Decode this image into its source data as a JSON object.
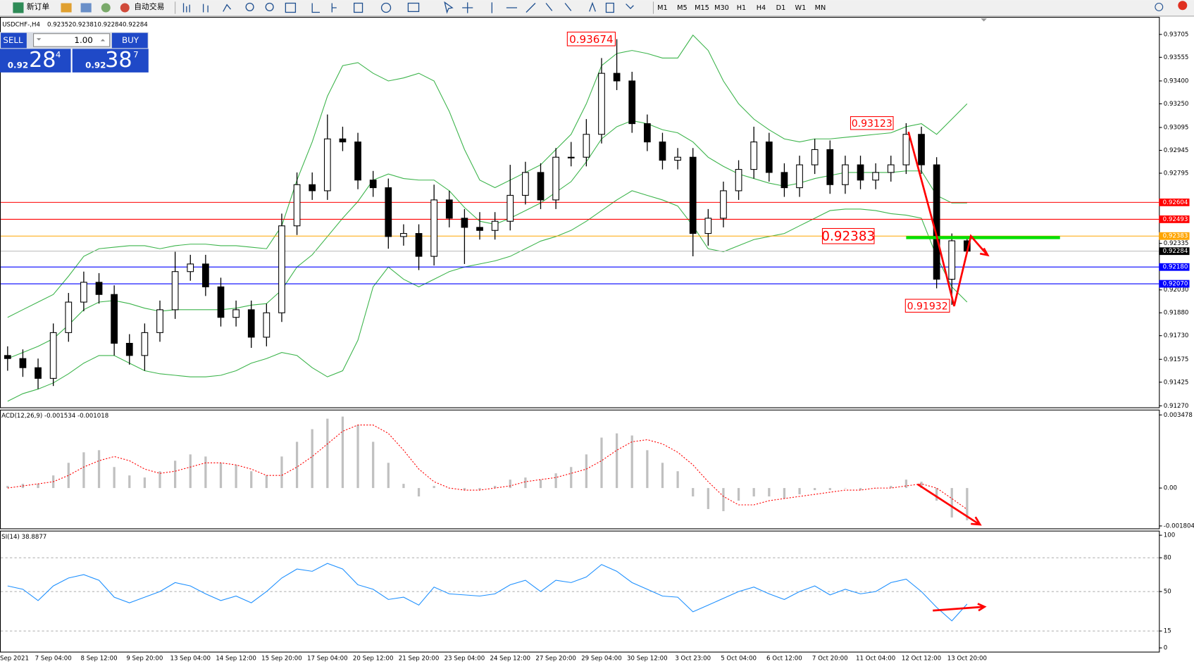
{
  "toolbar": {
    "new_order": "新订单",
    "auto_trading": "自动交易",
    "timeframes": [
      "M1",
      "M5",
      "M15",
      "M30",
      "H1",
      "H4",
      "D1",
      "W1",
      "MN"
    ]
  },
  "trade_panel": {
    "sell": "SELL",
    "buy": "BUY",
    "lots": "1.00",
    "sell_price": {
      "prefix": "0.92",
      "big": "28",
      "small": "4"
    },
    "buy_price": {
      "prefix": "0.92",
      "big": "38",
      "small": "7"
    }
  },
  "chart_data": [
    {
      "type": "candlestick",
      "symbol": "USDCHF-,H4",
      "categories": [
        "Sep 2021",
        null,
        null,
        "7 Sep 04:00",
        null,
        null,
        "8 Sep 12:00",
        null,
        null,
        "9 Sep 20:00",
        null,
        null,
        "13 Sep 04:00",
        null,
        null,
        "14 Sep 12:00",
        null,
        null,
        "15 Sep 20:00",
        null,
        null,
        "17 Sep 04:00",
        null,
        null,
        "20 Sep 12:00",
        null,
        null,
        "21 Sep 20:00",
        null,
        null,
        "23 Sep 04:00",
        null,
        null,
        "24 Sep 12:00",
        null,
        null,
        "27 Sep 20:00",
        null,
        null,
        "29 Sep 04:00",
        null,
        null,
        "30 Sep 12:00",
        null,
        null,
        "3 Oct 23:00",
        null,
        null,
        "5 Oct 04:00",
        null,
        null,
        "6 Oct 12:00",
        null,
        null,
        "7 Oct 20:00",
        null,
        null,
        "11 Oct 04:00",
        null,
        null,
        "12 Oct 12:00",
        null,
        null,
        "13 Oct 20:00"
      ],
      "open": [
        0.916,
        0.9158,
        0.9152,
        0.9145,
        0.9175,
        0.9195,
        0.9208,
        0.92,
        0.9168,
        0.916,
        0.9175,
        0.919,
        0.9215,
        0.922,
        0.9205,
        0.9185,
        0.919,
        0.9172,
        0.9188,
        0.9245,
        0.9272,
        0.9268,
        0.9302,
        0.93,
        0.9275,
        0.927,
        0.9238,
        0.924,
        0.9225,
        0.9262,
        0.925,
        0.9244,
        0.9242,
        0.9248,
        0.9265,
        0.928,
        0.9262,
        0.929,
        0.929,
        0.9305,
        0.9345,
        0.934,
        0.9312,
        0.93,
        0.9288,
        0.929,
        0.924,
        0.925,
        0.9268,
        0.9282,
        0.93,
        0.928,
        0.927,
        0.9285,
        0.9295,
        0.9272,
        0.9285,
        0.9275,
        0.928,
        0.9285,
        0.9305,
        0.9285,
        0.921,
        0.92352
      ],
      "high": [
        0.9166,
        0.9164,
        0.9158,
        0.9181,
        0.9201,
        0.9215,
        0.9214,
        0.9206,
        0.9174,
        0.9181,
        0.9196,
        0.9228,
        0.9226,
        0.9226,
        0.9211,
        0.9196,
        0.9196,
        0.9194,
        0.9253,
        0.928,
        0.928,
        0.9318,
        0.931,
        0.9306,
        0.9281,
        0.9276,
        0.9246,
        0.9246,
        0.9272,
        0.9268,
        0.9256,
        0.9254,
        0.9254,
        0.9285,
        0.9287,
        0.9286,
        0.9296,
        0.93,
        0.9315,
        0.9355,
        0.93674,
        0.9346,
        0.9318,
        0.9306,
        0.9296,
        0.9296,
        0.9256,
        0.9274,
        0.9288,
        0.931,
        0.9306,
        0.9286,
        0.9291,
        0.9302,
        0.9301,
        0.9291,
        0.9291,
        0.9286,
        0.9291,
        0.93123,
        0.931,
        0.929,
        0.924,
        0.92381
      ],
      "low": [
        0.915,
        0.9146,
        0.9138,
        0.914,
        0.9169,
        0.9189,
        0.9194,
        0.916,
        0.9154,
        0.915,
        0.9169,
        0.9184,
        0.9209,
        0.9199,
        0.9179,
        0.9179,
        0.9165,
        0.9166,
        0.9182,
        0.9239,
        0.9262,
        0.9262,
        0.9294,
        0.9269,
        0.9264,
        0.923,
        0.9232,
        0.9216,
        0.9219,
        0.9244,
        0.922,
        0.9236,
        0.9236,
        0.9242,
        0.9259,
        0.9256,
        0.9256,
        0.9284,
        0.9284,
        0.9299,
        0.9334,
        0.9306,
        0.9294,
        0.9282,
        0.9282,
        0.9225,
        0.9232,
        0.9244,
        0.9262,
        0.9276,
        0.9274,
        0.9264,
        0.9264,
        0.9279,
        0.9266,
        0.9266,
        0.9269,
        0.9269,
        0.9274,
        0.9279,
        0.9279,
        0.9204,
        0.91932,
        0.92284
      ],
      "close": [
        0.9158,
        0.9152,
        0.9145,
        0.9175,
        0.9195,
        0.9208,
        0.92,
        0.9168,
        0.916,
        0.9175,
        0.919,
        0.9215,
        0.922,
        0.9205,
        0.9185,
        0.919,
        0.9172,
        0.9188,
        0.9245,
        0.9272,
        0.9268,
        0.9302,
        0.93,
        0.9275,
        0.927,
        0.9238,
        0.924,
        0.9225,
        0.9262,
        0.925,
        0.9244,
        0.9242,
        0.9248,
        0.9265,
        0.928,
        0.9262,
        0.929,
        0.929,
        0.9305,
        0.9345,
        0.934,
        0.9312,
        0.93,
        0.9288,
        0.929,
        0.924,
        0.925,
        0.9268,
        0.9282,
        0.93,
        0.928,
        0.927,
        0.9285,
        0.9295,
        0.9272,
        0.9285,
        0.9275,
        0.928,
        0.9285,
        0.9305,
        0.9285,
        0.921,
        0.92352,
        0.92284
      ],
      "upper_band": [
        0.9185,
        0.919,
        0.9195,
        0.92,
        0.9212,
        0.9225,
        0.923,
        0.9231,
        0.9232,
        0.9232,
        0.923,
        0.9232,
        0.9233,
        0.9233,
        0.9232,
        0.9232,
        0.9231,
        0.923,
        0.9245,
        0.9275,
        0.93,
        0.933,
        0.935,
        0.9352,
        0.9345,
        0.934,
        0.9342,
        0.9345,
        0.934,
        0.932,
        0.9295,
        0.9275,
        0.927,
        0.9275,
        0.928,
        0.9285,
        0.9295,
        0.9305,
        0.9325,
        0.935,
        0.9358,
        0.936,
        0.9358,
        0.9355,
        0.9355,
        0.937,
        0.936,
        0.934,
        0.9325,
        0.9315,
        0.9308,
        0.9302,
        0.93,
        0.9302,
        0.9302,
        0.9303,
        0.9304,
        0.9305,
        0.9306,
        0.931,
        0.9312,
        0.9305,
        0.9315,
        0.9325
      ],
      "middle_band": [
        0.9158,
        0.9162,
        0.9166,
        0.9171,
        0.918,
        0.919,
        0.9195,
        0.9196,
        0.9194,
        0.9191,
        0.9189,
        0.919,
        0.919,
        0.919,
        0.919,
        0.9191,
        0.9193,
        0.9194,
        0.9203,
        0.9218,
        0.9226,
        0.9238,
        0.925,
        0.9261,
        0.9275,
        0.9279,
        0.9276,
        0.9275,
        0.9275,
        0.9268,
        0.9257,
        0.9248,
        0.9246,
        0.925,
        0.9255,
        0.926,
        0.9267,
        0.9274,
        0.9287,
        0.9302,
        0.931,
        0.9314,
        0.9312,
        0.9308,
        0.9306,
        0.93,
        0.929,
        0.9284,
        0.9279,
        0.9276,
        0.9273,
        0.9271,
        0.9273,
        0.9276,
        0.9278,
        0.928,
        0.928,
        0.928,
        0.928,
        0.9281,
        0.9281,
        0.9265,
        0.926,
        0.926
      ],
      "lower_band": [
        0.913,
        0.9135,
        0.9138,
        0.9142,
        0.9148,
        0.9155,
        0.916,
        0.916,
        0.9155,
        0.915,
        0.9148,
        0.9147,
        0.9146,
        0.9146,
        0.9147,
        0.915,
        0.9155,
        0.9158,
        0.9162,
        0.916,
        0.9152,
        0.9146,
        0.915,
        0.917,
        0.9205,
        0.9218,
        0.921,
        0.9205,
        0.921,
        0.9215,
        0.9218,
        0.922,
        0.9222,
        0.9225,
        0.923,
        0.9235,
        0.9238,
        0.9242,
        0.9248,
        0.9255,
        0.9262,
        0.9268,
        0.9265,
        0.9262,
        0.9258,
        0.9245,
        0.923,
        0.9228,
        0.9232,
        0.9236,
        0.9238,
        0.924,
        0.9245,
        0.925,
        0.9255,
        0.9256,
        0.9256,
        0.9255,
        0.9253,
        0.9252,
        0.925,
        0.9225,
        0.9205,
        0.9195
      ],
      "band_color": "#3cb44b",
      "ylim": [
        0.9126,
        0.9381
      ],
      "yticks": [
        0.93705,
        0.93555,
        {
          "value": 0.934,
          "label": "0.93400"
        },
        {
          "value": 0.9325,
          "label": "0.93250"
        },
        0.93095,
        0.92945,
        0.92795,
        0.92335,
        {
          "value": 0.9203,
          "label": "0.92030"
        },
        {
          "value": 0.9188,
          "label": "0.91880"
        },
        {
          "value": 0.9173,
          "label": "0.91730"
        },
        0.91575,
        0.91425,
        {
          "value": 0.9127,
          "label": "0.91270"
        }
      ],
      "levels": [
        {
          "value": 0.92604,
          "color": "#ff0000",
          "label_color": "#ff0000"
        },
        {
          "value": 0.92493,
          "color": "#ff0000",
          "label_color": "#ff0000"
        },
        {
          "value": 0.92383,
          "color": "#ffa500",
          "label_color": "#ffa500"
        },
        {
          "value": 0.92284,
          "color": "#c0c0c0",
          "label_color": "#000000"
        },
        {
          "value": 0.9218,
          "label": "0.92180",
          "color": "#0000ff",
          "label_color": "#0000ff"
        },
        {
          "value": 0.9207,
          "label": "0.92070",
          "color": "#0000ff",
          "label_color": "#0000ff"
        }
      ],
      "annotations": [
        "0.93674",
        "0.93123",
        "0.92383",
        "0.91932"
      ]
    },
    {
      "type": "macd",
      "title": "ACD(12,26,9) -0.001534 -0.001018",
      "histogram": [
        0.0001,
        0.0002,
        0.0002,
        0.0006,
        0.0012,
        0.0017,
        0.0018,
        0.001,
        0.0006,
        0.0005,
        0.0008,
        0.0013,
        0.0016,
        0.0015,
        0.0012,
        0.0011,
        0.0008,
        0.0006,
        0.0015,
        0.0022,
        0.0028,
        0.0033,
        0.0034,
        0.003,
        0.0022,
        0.0012,
        0.0002,
        -0.0004,
        0.0001,
        0.0,
        -0.0001,
        -0.0001,
        0.0001,
        0.0004,
        0.0005,
        0.0004,
        0.0007,
        0.001,
        0.0016,
        0.0024,
        0.0026,
        0.0025,
        0.0018,
        0.0012,
        0.0008,
        -0.0004,
        -0.001,
        -0.0011,
        -0.0006,
        -0.0004,
        -0.0004,
        -0.0005,
        -0.0003,
        -0.0001,
        -0.0001,
        0.0,
        -0.0001,
        0.0,
        0.0001,
        0.0004,
        0.0003,
        -0.0006,
        -0.0014,
        -0.001534
      ],
      "signal": [
        0.0,
        0.0001,
        0.0002,
        0.0003,
        0.0006,
        0.001,
        0.0013,
        0.0015,
        0.0013,
        0.0009,
        0.0007,
        0.0008,
        0.001,
        0.0012,
        0.0012,
        0.0011,
        0.0009,
        0.0006,
        0.0006,
        0.001,
        0.0015,
        0.0021,
        0.0027,
        0.003,
        0.003,
        0.0026,
        0.0018,
        0.0009,
        0.0003,
        0.0,
        -0.0001,
        -0.0001,
        0.0,
        0.0001,
        0.0003,
        0.0004,
        0.0005,
        0.0007,
        0.0009,
        0.0013,
        0.0018,
        0.0022,
        0.0023,
        0.0021,
        0.0017,
        0.0011,
        0.0003,
        -0.0004,
        -0.0008,
        -0.0008,
        -0.0006,
        -0.0005,
        -0.0004,
        -0.0003,
        -0.0002,
        -0.0001,
        -0.0001,
        0.0,
        0.0,
        0.0001,
        0.0002,
        0.0,
        -0.0005,
        -0.001018
      ],
      "histogram_color": "#c0c0c0",
      "signal_color": "#ff0000",
      "ylim": [
        -0.00192,
        0.00373
      ],
      "yticks": [
        0.003478,
        {
          "value": 0,
          "label": "0.00"
        },
        -0.001804
      ]
    },
    {
      "type": "rsi",
      "title": "SI(14) 38.8877",
      "values": [
        55,
        52,
        42,
        55,
        62,
        65,
        60,
        45,
        40,
        45,
        50,
        58,
        55,
        48,
        42,
        46,
        40,
        50,
        62,
        70,
        68,
        75,
        70,
        56,
        52,
        43,
        45,
        38,
        54,
        48,
        47,
        46,
        48,
        56,
        60,
        50,
        60,
        58,
        63,
        74,
        68,
        58,
        52,
        46,
        45,
        32,
        38,
        44,
        50,
        54,
        48,
        43,
        50,
        55,
        47,
        52,
        48,
        50,
        58,
        61,
        50,
        36,
        24,
        38.8877
      ],
      "color": "#1e90ff",
      "ylim": [
        0,
        100
      ],
      "yticks": [
        100,
        80,
        50,
        15,
        0
      ],
      "grid": true
    }
  ]
}
